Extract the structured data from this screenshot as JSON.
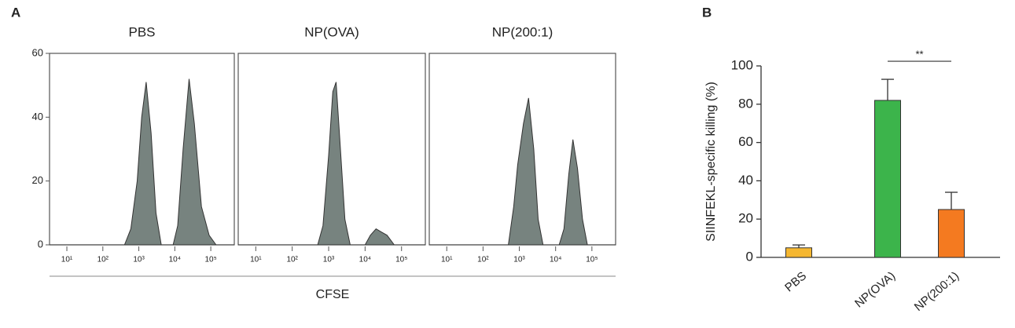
{
  "panel_labels": [
    "A",
    "B"
  ],
  "shared_x_label": "CFSE",
  "chart_data": [
    {
      "type": "area",
      "title": "PBS",
      "color": "#77837f",
      "xlog": true,
      "xlim": [
        3.3,
        450000
      ],
      "ylim": [
        0,
        60
      ],
      "yticks": [
        0,
        20,
        40,
        60
      ],
      "xticks": [
        {
          "value": 10,
          "label": "10¹"
        },
        {
          "value": 100,
          "label": "10²"
        },
        {
          "value": 1000,
          "label": "10³"
        },
        {
          "value": 10000,
          "label": "10⁴"
        },
        {
          "value": 100000,
          "label": "10⁵"
        }
      ],
      "x": [
        3.3,
        400,
        600,
        900,
        1200,
        1600,
        2200,
        3000,
        4200,
        9000,
        12000,
        17000,
        25000,
        35000,
        55000,
        90000,
        140000,
        450000
      ],
      "values": [
        0,
        0,
        5,
        20,
        40,
        51,
        35,
        10,
        0,
        0,
        6,
        30,
        52,
        38,
        12,
        3,
        0,
        0
      ]
    },
    {
      "type": "area",
      "title": "NP(OVA)",
      "color": "#77837f",
      "xlog": true,
      "xlim": [
        3.3,
        450000
      ],
      "ylim": [
        0,
        60
      ],
      "xticks": [
        {
          "value": 10,
          "label": "10¹"
        },
        {
          "value": 100,
          "label": "10²"
        },
        {
          "value": 1000,
          "label": "10³"
        },
        {
          "value": 10000,
          "label": "10⁴"
        },
        {
          "value": 100000,
          "label": "10⁵"
        }
      ],
      "x": [
        3.3,
        500,
        700,
        1000,
        1300,
        1600,
        2100,
        2800,
        3900,
        10000,
        14000,
        20000,
        28000,
        40000,
        63000,
        450000
      ],
      "values": [
        0,
        0,
        6,
        28,
        48,
        51,
        30,
        8,
        0,
        0,
        3,
        5,
        4,
        3,
        0,
        0
      ]
    },
    {
      "type": "area",
      "title": "NP(200:1)",
      "color": "#77837f",
      "xlog": true,
      "xlim": [
        3.3,
        450000
      ],
      "ylim": [
        0,
        60
      ],
      "xticks": [
        {
          "value": 10,
          "label": "10¹"
        },
        {
          "value": 100,
          "label": "10²"
        },
        {
          "value": 1000,
          "label": "10³"
        },
        {
          "value": 10000,
          "label": "10⁴"
        },
        {
          "value": 100000,
          "label": "10⁵"
        }
      ],
      "x": [
        3.3,
        500,
        700,
        900,
        1300,
        1800,
        2500,
        3300,
        4500,
        12500,
        17000,
        23000,
        30000,
        40000,
        55000,
        75000,
        450000
      ],
      "values": [
        0,
        0,
        12,
        25,
        38,
        46,
        30,
        8,
        0,
        0,
        5,
        22,
        33,
        24,
        8,
        0,
        0
      ]
    },
    {
      "type": "bar",
      "y_label": "SIINFEKL-specific killing (%)",
      "categories": [
        "PBS",
        "NP(OVA)",
        "NP(200:1)"
      ],
      "values": [
        5,
        82,
        25
      ],
      "errors": [
        1.5,
        11,
        9
      ],
      "colors": [
        "#f5b731",
        "#3cb44b",
        "#f47a20"
      ],
      "ylim": [
        0,
        100
      ],
      "yticks": [
        0,
        20,
        40,
        60,
        80,
        100
      ],
      "annotation": "**"
    }
  ]
}
